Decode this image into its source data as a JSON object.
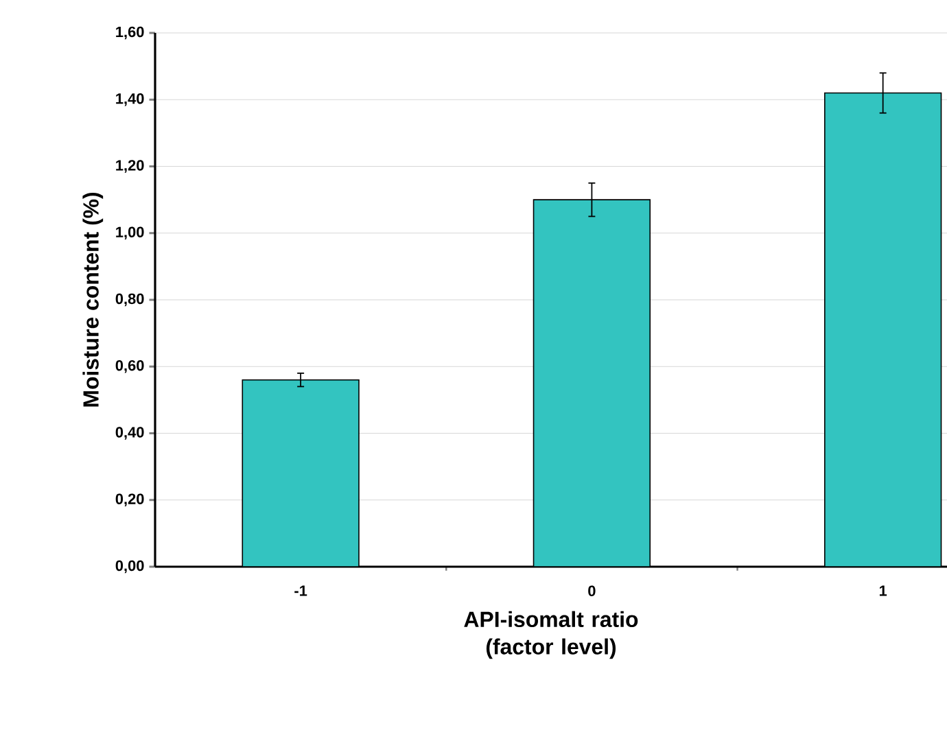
{
  "chart_data": {
    "type": "bar",
    "xlabel": "API-isomalt ratio (factor level)",
    "ylabel": "Moisture content (%)",
    "categories": [
      "-1",
      "0",
      "1"
    ],
    "values": [
      0.56,
      1.1,
      1.42
    ],
    "errors": [
      0.02,
      0.05,
      0.06
    ],
    "color": "#33c4c0",
    "ylim": [
      0,
      1.6
    ],
    "yticks": [
      {
        "value": 0,
        "label": "0,00"
      },
      {
        "value": 0.2,
        "label": "0,20"
      },
      {
        "value": 0.4,
        "label": "0,40"
      },
      {
        "value": 0.6,
        "label": "0,60"
      },
      {
        "value": 0.8,
        "label": "0,80"
      },
      {
        "value": 1.0,
        "label": "1,00"
      },
      {
        "value": 1.2,
        "label": "1,20"
      },
      {
        "value": 1.4,
        "label": "1,40"
      },
      {
        "value": 1.6,
        "label": "1,60"
      }
    ],
    "grid": "y"
  }
}
